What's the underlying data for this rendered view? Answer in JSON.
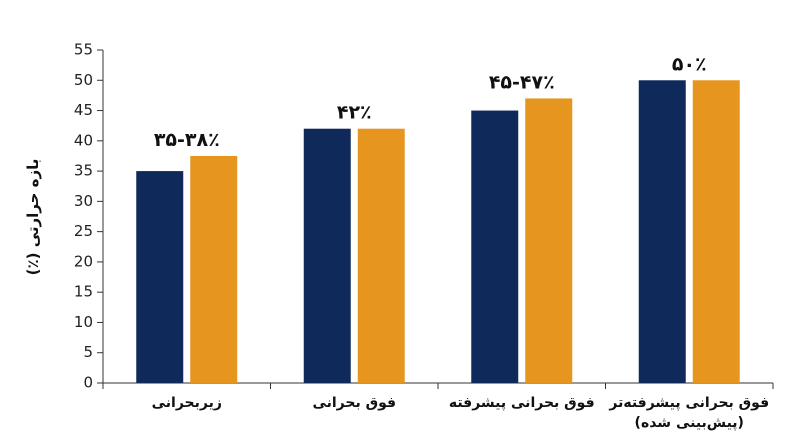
{
  "chart_data": {
    "type": "bar",
    "y_label": "بازه حرارتی (٪)",
    "categories": [
      "زیربحرانی",
      "فوق بحرانی",
      "فوق بحرانی پیشرفته",
      "فوق بحرانی پیشرفته‌تر (پیش‌بینی شده)"
    ],
    "series": [
      {
        "color": "#0f2a5a",
        "values": [
          35,
          42,
          45,
          50
        ]
      },
      {
        "color": "#e6951e",
        "values": [
          37.5,
          42,
          47,
          50
        ]
      }
    ],
    "annotations": [
      "۳۵-۳۸٪",
      "۴۲٪",
      "۴۵-۴۷٪",
      "۵۰٪"
    ],
    "ylim": [
      0,
      55
    ],
    "yticks": [
      0,
      5,
      10,
      15,
      20,
      25,
      30,
      35,
      40,
      45,
      50,
      55
    ],
    "grid": false
  }
}
